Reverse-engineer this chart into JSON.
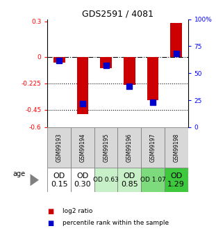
{
  "title": "GDS2591 / 4081",
  "samples": [
    "GSM99193",
    "GSM99194",
    "GSM99195",
    "GSM99196",
    "GSM99197",
    "GSM99198"
  ],
  "log2_ratios": [
    -0.05,
    -0.49,
    -0.1,
    -0.24,
    -0.37,
    0.29
  ],
  "percentile_ranks": [
    62,
    22,
    57,
    38,
    23,
    68
  ],
  "age_labels": [
    "OD\n0.15",
    "OD\n0.30",
    "OD 0.63",
    "OD\n0.85",
    "OD 1.07",
    "OD\n1.29"
  ],
  "age_colors": [
    "#ffffff",
    "#ffffff",
    "#c8f0c8",
    "#c8f0c8",
    "#7ddb7d",
    "#3ec83e"
  ],
  "age_fontsizes": [
    8,
    8,
    6.5,
    8,
    6.5,
    8
  ],
  "ylim_left": [
    -0.6,
    0.32
  ],
  "ylim_right": [
    0,
    100
  ],
  "yticks_left": [
    0.3,
    0.0,
    -0.225,
    -0.45,
    -0.6
  ],
  "ytick_labels_left": [
    "0.3",
    "0",
    "-0.225",
    "-0.45",
    "-0.6"
  ],
  "yticks_right": [
    100,
    75,
    50,
    25,
    0
  ],
  "ytick_labels_right": [
    "100%",
    "75",
    "50",
    "25",
    "0"
  ],
  "hlines_dotted": [
    -0.45,
    -0.225
  ],
  "hline_dashdot": 0.0,
  "bar_color": "#cc0000",
  "dot_color": "#0000cc",
  "bar_width": 0.5,
  "dot_size": 28,
  "bg_color": "#d8d8d8"
}
